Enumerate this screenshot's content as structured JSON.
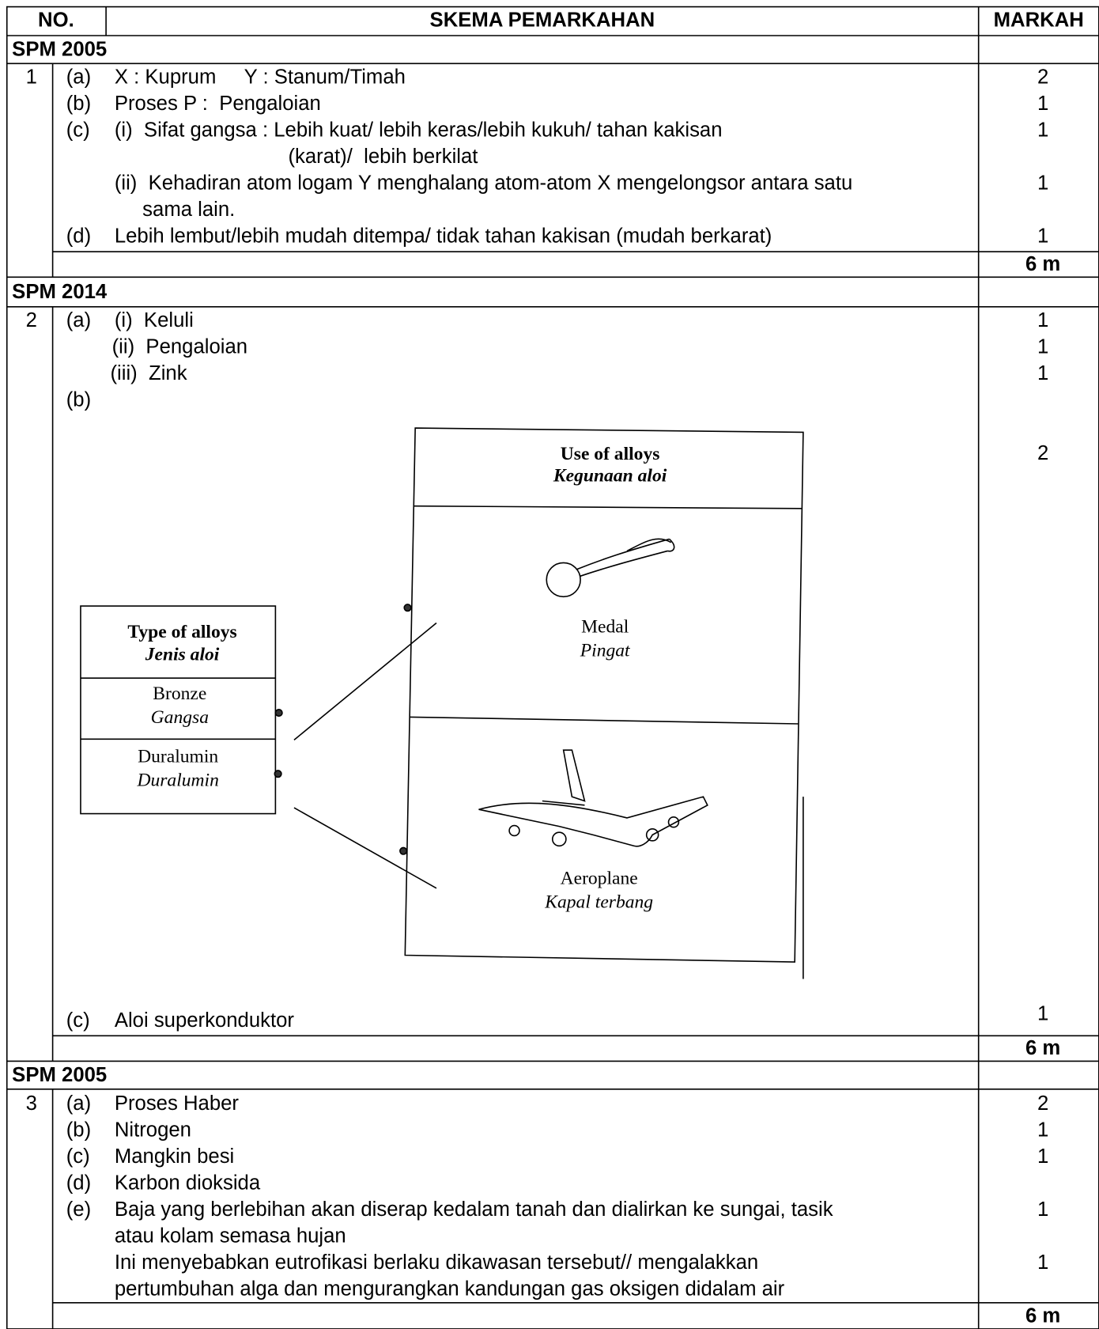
{
  "header": {
    "no": "NO.",
    "scheme": "SKEMA PEMARKAHAN",
    "marks": "MARKAH"
  },
  "sections": [
    {
      "title": "SPM 2005",
      "number": 1,
      "lines": [
        {
          "label": "(a)",
          "text": "X : Kuprum     Y : Stanum/Timah",
          "mark": 2
        },
        {
          "label": "(b)",
          "text": "Proses P :  Pengaloian",
          "mark": 1
        },
        {
          "label": "(c)",
          "text": "(i)  Sifat gangsa : Lebih kuat/ lebih keras/lebih kukuh/ tahan kakisan",
          "mark": 1
        },
        {
          "text": "(karat)/  lebih berkilat"
        },
        {
          "text": "(ii)  Kehadiran atom logam Y menghalang atom-atom X mengelongsor antara satu",
          "mark": 1
        },
        {
          "text": "sama lain."
        },
        {
          "label": "(d)",
          "text": "Lebih lembut/lebih mudah ditempa/ tidak tahan kakisan (mudah berkarat)",
          "mark": 1
        }
      ],
      "total": "6 m"
    },
    {
      "title": "SPM 2014",
      "number": 2,
      "lines": [
        {
          "label": "(a)",
          "text": "(i)  Keluli",
          "mark": 1
        },
        {
          "text": "(ii)  Pengaloian",
          "mark": 1
        },
        {
          "text": "(iii)  Zink",
          "mark": 1
        },
        {
          "label": "(b)",
          "mark": 2
        },
        {
          "label": "(c)",
          "text": "Aloi superkonduktor",
          "mark": 1
        }
      ],
      "diagram": {
        "uses_title": "Use of alloys",
        "uses_title_ms": "Kegunaan aloi",
        "uses": [
          {
            "en": "Medal",
            "ms": "Pingat"
          },
          {
            "en": "Aeroplane",
            "ms": "Kapal terbang"
          }
        ],
        "types_title": "Type of alloys",
        "types_title_ms": "Jenis aloi",
        "types": [
          {
            "en": "Bronze",
            "ms": "Gangsa"
          },
          {
            "en": "Duralumin",
            "ms": "Duralumin"
          }
        ]
      },
      "total": "6 m"
    },
    {
      "title": "SPM 2005",
      "number": 3,
      "lines": [
        {
          "label": "(a)",
          "text": "Proses Haber",
          "mark": 2
        },
        {
          "label": "(b)",
          "text": "Nitrogen",
          "mark": 1
        },
        {
          "label": "(c)",
          "text": "Mangkin besi",
          "mark": 1
        },
        {
          "label": "(d)",
          "text": "Karbon dioksida"
        },
        {
          "label": "(e)",
          "text": "Baja yang berlebihan akan diserap kedalam tanah dan dialirkan ke sungai, tasik",
          "mark": 1
        },
        {
          "text": "atau kolam semasa hujan"
        },
        {
          "text": "Ini menyebabkan eutrofikasi berlaku dikawasan tersebut// mengalakkan",
          "mark": 1
        },
        {
          "text": "pertumbuhan alga dan mengurangkan kandungan gas oksigen didalam air"
        }
      ],
      "total": "6 m"
    }
  ]
}
